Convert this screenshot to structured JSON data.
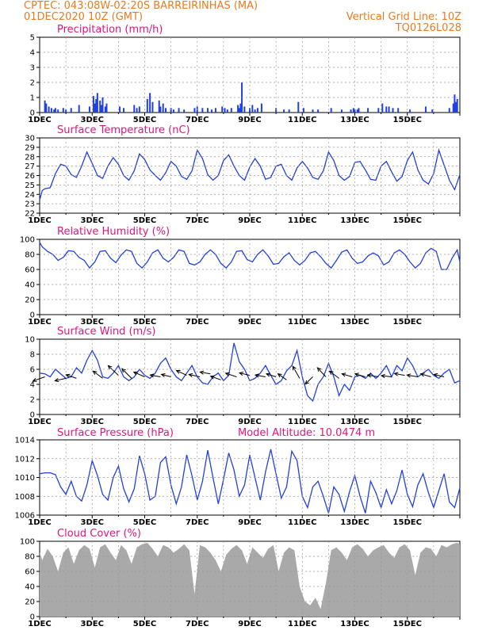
{
  "header": {
    "line1": "CPTEC:   043:08W-02:20S   BARREIRINHAS (MA)",
    "line2_left": "01DEC2020 10Z (GMT)",
    "line2_right": "Vertical Grid Line: 10Z",
    "line3_right": "TQ0126L028"
  },
  "colors": {
    "header": "#e87b1e",
    "title": "#e0157a",
    "series": "#2140e0",
    "bars": "#2140e0",
    "cloud": "#a9a9a9",
    "grid": "#999999"
  },
  "x_ticks": [
    "1DEC",
    "3DEC",
    "5DEC",
    "7DEC",
    "9DEC",
    "11DEC",
    "13DEC",
    "15DEC"
  ],
  "chart_data": [
    {
      "type": "bar",
      "title": "Precipitation (mm/h)",
      "ylim": [
        0,
        5
      ],
      "yticks": [
        0,
        1,
        2,
        3,
        4,
        5
      ],
      "x_days": [
        0.2,
        0.25,
        0.35,
        0.45,
        0.55,
        0.6,
        0.7,
        0.9,
        1.0,
        1.2,
        1.5,
        1.9,
        2.05,
        2.1,
        2.15,
        2.2,
        2.3,
        2.35,
        2.4,
        2.5,
        2.55,
        3.05,
        3.2,
        3.6,
        3.7,
        3.8,
        4.1,
        4.2,
        4.3,
        4.55,
        4.6,
        4.7,
        4.8,
        5.0,
        5.1,
        5.3,
        5.5,
        5.9,
        6.0,
        6.2,
        6.4,
        6.55,
        6.7,
        6.95,
        7.05,
        7.15,
        7.3,
        7.55,
        7.6,
        7.65,
        7.7,
        7.8,
        8.0,
        8.1,
        8.2,
        8.3,
        8.45,
        9.0,
        9.3,
        9.5,
        9.85,
        10.05,
        10.4,
        10.6,
        11.1,
        11.5,
        11.85,
        11.95,
        12.0,
        12.1,
        12.15,
        12.5,
        12.9,
        13.05,
        13.2,
        13.3,
        13.45,
        13.65,
        14.1,
        14.7,
        14.95,
        15.6,
        15.75,
        15.8,
        15.85,
        15.9
      ],
      "values": [
        0.8,
        0.6,
        0.4,
        0.3,
        0.2,
        0.3,
        0.2,
        0.3,
        0.2,
        0.3,
        0.5,
        0.4,
        1.1,
        0.6,
        0.9,
        1.3,
        0.8,
        0.5,
        1.0,
        0.4,
        0.6,
        0.4,
        0.3,
        0.5,
        0.3,
        0.4,
        0.9,
        1.3,
        0.7,
        0.8,
        0.4,
        0.6,
        0.3,
        0.3,
        0.2,
        0.3,
        0.2,
        0.3,
        0.4,
        0.3,
        0.3,
        0.2,
        0.3,
        0.4,
        0.3,
        0.2,
        0.3,
        0.5,
        0.3,
        0.6,
        2.0,
        0.4,
        0.3,
        0.5,
        0.2,
        0.3,
        0.6,
        0.3,
        0.2,
        0.2,
        0.7,
        0.3,
        0.2,
        0.2,
        0.3,
        0.2,
        0.2,
        0.3,
        0.2,
        0.2,
        0.3,
        0.3,
        0.3,
        0.6,
        0.4,
        0.4,
        0.3,
        0.3,
        0.2,
        0.4,
        0.2,
        0.3,
        0.6,
        1.2,
        0.7,
        0.9
      ]
    },
    {
      "type": "line",
      "title": "Surface Temperature (nC)",
      "ylim": [
        22,
        30
      ],
      "yticks": [
        22,
        23,
        24,
        25,
        26,
        27,
        28,
        29,
        30
      ],
      "x": [
        0,
        0.1,
        0.2,
        0.4,
        0.6,
        0.8,
        1.0,
        1.2,
        1.4,
        1.6,
        1.8,
        2.0,
        2.2,
        2.4,
        2.6,
        2.8,
        3.0,
        3.2,
        3.4,
        3.6,
        3.8,
        4.0,
        4.2,
        4.4,
        4.6,
        4.8,
        5.0,
        5.2,
        5.4,
        5.6,
        5.8,
        6.0,
        6.2,
        6.4,
        6.6,
        6.8,
        7.0,
        7.2,
        7.4,
        7.6,
        7.8,
        8.0,
        8.2,
        8.4,
        8.6,
        8.8,
        9.0,
        9.2,
        9.4,
        9.6,
        9.8,
        10.0,
        10.2,
        10.4,
        10.6,
        10.8,
        11.0,
        11.2,
        11.4,
        11.6,
        11.8,
        12.0,
        12.2,
        12.4,
        12.6,
        12.8,
        13.0,
        13.2,
        13.4,
        13.6,
        13.8,
        14.0,
        14.2,
        14.4,
        14.6,
        14.8,
        15.0,
        15.2,
        15.4,
        15.6,
        15.8,
        16.0
      ],
      "values": [
        23.4,
        24.4,
        24.6,
        24.7,
        26.2,
        27.2,
        27.0,
        26.1,
        25.8,
        27.0,
        28.5,
        27.3,
        26.0,
        25.7,
        27.0,
        27.9,
        27.2,
        26.0,
        25.5,
        26.5,
        28.3,
        27.7,
        26.6,
        26.0,
        25.5,
        26.3,
        27.5,
        27.0,
        25.9,
        25.6,
        26.5,
        28.7,
        27.8,
        26.1,
        25.5,
        26.0,
        27.6,
        28.2,
        27.0,
        26.0,
        25.5,
        26.9,
        27.8,
        27.0,
        25.6,
        25.8,
        27.0,
        27.2,
        26.0,
        25.5,
        26.8,
        27.5,
        26.8,
        25.8,
        25.6,
        26.5,
        28.5,
        27.6,
        26.0,
        25.5,
        25.9,
        27.4,
        27.5,
        26.6,
        25.6,
        25.5,
        27.0,
        27.5,
        26.4,
        25.4,
        25.9,
        27.6,
        28.5,
        26.6,
        25.5,
        25.1,
        26.2,
        28.7,
        27.1,
        25.5,
        24.5,
        26.1
      ]
    },
    {
      "type": "line",
      "title": "Relative Humidity (%)",
      "ylim": [
        0,
        100
      ],
      "yticks": [
        0,
        20,
        40,
        60,
        80,
        100
      ],
      "x": [
        0,
        0.1,
        0.3,
        0.5,
        0.7,
        0.9,
        1.1,
        1.3,
        1.5,
        1.7,
        1.9,
        2.1,
        2.3,
        2.5,
        2.7,
        2.9,
        3.1,
        3.3,
        3.5,
        3.7,
        3.9,
        4.1,
        4.3,
        4.5,
        4.7,
        4.9,
        5.1,
        5.3,
        5.5,
        5.7,
        5.9,
        6.1,
        6.3,
        6.5,
        6.7,
        6.9,
        7.1,
        7.3,
        7.5,
        7.7,
        7.9,
        8.1,
        8.3,
        8.5,
        8.7,
        8.9,
        9.1,
        9.3,
        9.5,
        9.7,
        9.9,
        10.1,
        10.3,
        10.5,
        10.7,
        10.9,
        11.1,
        11.3,
        11.5,
        11.7,
        11.9,
        12.1,
        12.3,
        12.5,
        12.7,
        12.9,
        13.1,
        13.3,
        13.5,
        13.7,
        13.9,
        14.1,
        14.3,
        14.5,
        14.7,
        14.9,
        15.1,
        15.3,
        15.5,
        15.7,
        15.9,
        16.0
      ],
      "values": [
        96,
        90,
        84,
        80,
        72,
        76,
        85,
        84,
        76,
        72,
        62,
        70,
        84,
        85,
        75,
        69,
        79,
        86,
        84,
        68,
        62,
        70,
        82,
        86,
        75,
        70,
        76,
        86,
        84,
        68,
        66,
        70,
        80,
        86,
        80,
        68,
        62,
        70,
        84,
        85,
        73,
        70,
        80,
        86,
        78,
        67,
        68,
        77,
        82,
        72,
        66,
        72,
        82,
        84,
        77,
        68,
        62,
        72,
        83,
        86,
        75,
        68,
        70,
        78,
        82,
        78,
        66,
        70,
        82,
        86,
        80,
        70,
        62,
        68,
        82,
        88,
        84,
        60,
        60,
        75,
        86,
        70
      ]
    },
    {
      "type": "line",
      "title": "Surface Wind (m/s)",
      "ylim": [
        0,
        10
      ],
      "yticks": [
        0,
        2,
        4,
        6,
        8,
        10
      ],
      "x": [
        0,
        0.2,
        0.4,
        0.6,
        0.8,
        1.0,
        1.2,
        1.4,
        1.6,
        1.8,
        2.0,
        2.2,
        2.4,
        2.6,
        2.8,
        3.0,
        3.2,
        3.4,
        3.6,
        3.8,
        4.0,
        4.2,
        4.4,
        4.6,
        4.8,
        5.0,
        5.2,
        5.4,
        5.6,
        5.8,
        6.0,
        6.2,
        6.4,
        6.6,
        6.8,
        7.0,
        7.2,
        7.4,
        7.6,
        7.8,
        8.0,
        8.2,
        8.4,
        8.6,
        8.8,
        9.0,
        9.2,
        9.4,
        9.6,
        9.8,
        10.0,
        10.2,
        10.4,
        10.6,
        10.8,
        11.0,
        11.2,
        11.4,
        11.6,
        11.8,
        12.0,
        12.2,
        12.4,
        12.6,
        12.8,
        13.0,
        13.2,
        13.4,
        13.6,
        13.8,
        14.0,
        14.2,
        14.4,
        14.6,
        14.8,
        15.0,
        15.2,
        15.4,
        15.6,
        15.8,
        16.0
      ],
      "values": [
        5.5,
        5.4,
        5.0,
        6.0,
        5.4,
        4.8,
        5.0,
        6.2,
        5.5,
        7.2,
        8.5,
        7.2,
        5.0,
        4.8,
        5.5,
        6.5,
        5.0,
        4.5,
        5.0,
        6.0,
        5.2,
        4.8,
        5.5,
        6.8,
        7.5,
        6.0,
        5.0,
        4.5,
        5.5,
        6.5,
        5.0,
        4.2,
        4.0,
        5.0,
        5.5,
        4.5,
        5.2,
        9.5,
        7.0,
        6.0,
        4.5,
        4.8,
        5.5,
        6.5,
        5.2,
        4.0,
        4.5,
        5.8,
        6.5,
        8.5,
        5.0,
        2.5,
        1.8,
        4.0,
        5.0,
        6.8,
        5.0,
        2.5,
        4.0,
        3.2,
        5.0,
        5.2,
        4.8,
        5.5,
        4.8,
        5.5,
        6.5,
        5.0,
        6.5,
        5.8,
        7.5,
        6.5,
        5.0,
        5.5,
        6.0,
        5.2,
        4.8,
        5.5,
        6.0,
        4.2,
        4.5
      ],
      "arrows_x": [
        0.2,
        1.0,
        1.4,
        2.4,
        3.0,
        3.5,
        4.0,
        4.6,
        5.0,
        5.6,
        6.1,
        6.5,
        6.9,
        7.5,
        8.0,
        8.6,
        9.0,
        9.4,
        9.9,
        10.4,
        10.9,
        11.4,
        11.9,
        12.4,
        12.9,
        13.4,
        13.9,
        14.4,
        14.9,
        15.4
      ],
      "arrows_y": [
        5.0,
        4.8,
        4.8,
        4.8,
        5.2,
        4.8,
        5.0,
        5.0,
        5.0,
        5.2,
        5.0,
        5.4,
        4.6,
        5.0,
        5.2,
        5.0,
        5.0,
        4.6,
        4.8,
        5.0,
        5.0,
        4.8,
        5.0,
        5.0,
        5.0,
        5.0,
        5.2,
        5.0,
        5.0,
        5.0
      ],
      "arrows_dx": [
        -0.35,
        -0.32,
        -0.3,
        -0.28,
        -0.3,
        -0.28,
        -0.32,
        -0.3,
        -0.28,
        -0.3,
        -0.32,
        -0.3,
        -0.3,
        -0.32,
        -0.3,
        -0.3,
        -0.28,
        -0.25,
        -0.2,
        -0.22,
        -0.25,
        -0.28,
        -0.3,
        -0.3,
        -0.32,
        -0.3,
        -0.3,
        -0.32,
        -0.3,
        -0.3
      ],
      "arrows_dy": [
        -0.7,
        -0.4,
        0.6,
        1.2,
        1.6,
        1.6,
        0.8,
        0.3,
        0.4,
        0.8,
        0.4,
        0.3,
        0.6,
        0.6,
        0.4,
        0.3,
        0.5,
        1.0,
        2.0,
        -1.2,
        1.5,
        1.2,
        0.5,
        0.5,
        0.3,
        0.2,
        0.3,
        0.3,
        0.5,
        0.4
      ]
    },
    {
      "type": "line",
      "title": "Surface Pressure (hPa)",
      "subtitle": "Model Altitude: 10.0474 m",
      "ylim": [
        1006,
        1014
      ],
      "yticks": [
        1006,
        1008,
        1010,
        1012,
        1014
      ],
      "x": [
        0,
        0.2,
        0.4,
        0.6,
        0.8,
        1.0,
        1.2,
        1.4,
        1.6,
        1.8,
        2.0,
        2.2,
        2.4,
        2.6,
        2.8,
        3.0,
        3.2,
        3.4,
        3.6,
        3.8,
        4.0,
        4.2,
        4.4,
        4.6,
        4.8,
        5.0,
        5.2,
        5.4,
        5.6,
        5.8,
        6.0,
        6.2,
        6.4,
        6.6,
        6.8,
        7.0,
        7.2,
        7.4,
        7.6,
        7.8,
        8.0,
        8.2,
        8.4,
        8.6,
        8.8,
        9.0,
        9.2,
        9.4,
        9.6,
        9.8,
        10.0,
        10.2,
        10.4,
        10.6,
        10.8,
        11.0,
        11.2,
        11.4,
        11.6,
        11.8,
        12.0,
        12.2,
        12.4,
        12.6,
        12.8,
        13.0,
        13.2,
        13.4,
        13.6,
        13.8,
        14.0,
        14.2,
        14.4,
        14.6,
        14.8,
        15.0,
        15.2,
        15.4,
        15.6,
        15.8,
        16.0
      ],
      "values": [
        1010.4,
        1010.5,
        1010.5,
        1010.3,
        1009.0,
        1008.2,
        1009.6,
        1008.0,
        1007.5,
        1009.2,
        1011.8,
        1010.2,
        1008.2,
        1007.6,
        1010.0,
        1011.2,
        1008.8,
        1007.4,
        1008.8,
        1012.3,
        1010.4,
        1007.6,
        1008.0,
        1011.6,
        1012.2,
        1009.2,
        1007.2,
        1009.0,
        1012.4,
        1010.2,
        1007.6,
        1009.6,
        1012.9,
        1010.0,
        1007.2,
        1009.8,
        1012.6,
        1010.8,
        1008.0,
        1009.2,
        1012.4,
        1010.0,
        1007.6,
        1010.6,
        1013.0,
        1010.4,
        1007.8,
        1009.0,
        1012.8,
        1011.8,
        1008.0,
        1006.8,
        1009.0,
        1009.6,
        1008.0,
        1006.2,
        1009.0,
        1008.2,
        1006.4,
        1008.5,
        1010.2,
        1008.0,
        1006.2,
        1009.6,
        1008.4,
        1006.8,
        1008.7,
        1007.2,
        1008.6,
        1010.8,
        1008.2,
        1006.9,
        1009.2,
        1010.4,
        1008.4,
        1006.8,
        1008.6,
        1010.4,
        1007.4,
        1006.8,
        1008.9
      ]
    },
    {
      "type": "area",
      "title": "Cloud Cover (%)",
      "ylim": [
        0,
        100
      ],
      "yticks": [
        0,
        20,
        40,
        60,
        80,
        100
      ],
      "x": [
        0,
        0.1,
        0.3,
        0.5,
        0.7,
        0.9,
        1.1,
        1.3,
        1.5,
        1.7,
        1.9,
        2.1,
        2.3,
        2.5,
        2.7,
        2.9,
        3.1,
        3.3,
        3.5,
        3.7,
        3.9,
        4.1,
        4.3,
        4.5,
        4.7,
        4.9,
        5.1,
        5.3,
        5.5,
        5.7,
        5.9,
        6.1,
        6.3,
        6.5,
        6.7,
        6.9,
        7.1,
        7.3,
        7.5,
        7.7,
        7.9,
        8.1,
        8.3,
        8.5,
        8.7,
        8.9,
        9.1,
        9.3,
        9.5,
        9.7,
        9.9,
        10.1,
        10.3,
        10.5,
        10.7,
        10.9,
        11.1,
        11.3,
        11.5,
        11.7,
        11.9,
        12.1,
        12.3,
        12.5,
        12.7,
        12.9,
        13.1,
        13.3,
        13.5,
        13.7,
        13.9,
        14.1,
        14.3,
        14.5,
        14.7,
        14.9,
        15.1,
        15.3,
        15.5,
        15.7,
        15.9,
        16.0
      ],
      "values": [
        85,
        75,
        90,
        80,
        60,
        85,
        92,
        70,
        88,
        95,
        90,
        65,
        92,
        96,
        85,
        75,
        95,
        88,
        70,
        92,
        96,
        98,
        90,
        80,
        95,
        92,
        85,
        90,
        96,
        88,
        30,
        95,
        92,
        85,
        75,
        60,
        82,
        90,
        95,
        88,
        70,
        92,
        85,
        78,
        90,
        95,
        60,
        85,
        92,
        88,
        40,
        20,
        15,
        25,
        10,
        45,
        88,
        92,
        85,
        75,
        92,
        96,
        90,
        80,
        88,
        92,
        95,
        85,
        78,
        92,
        96,
        88,
        55,
        85,
        92,
        90,
        80,
        95,
        92,
        96,
        98,
        96
      ]
    }
  ]
}
